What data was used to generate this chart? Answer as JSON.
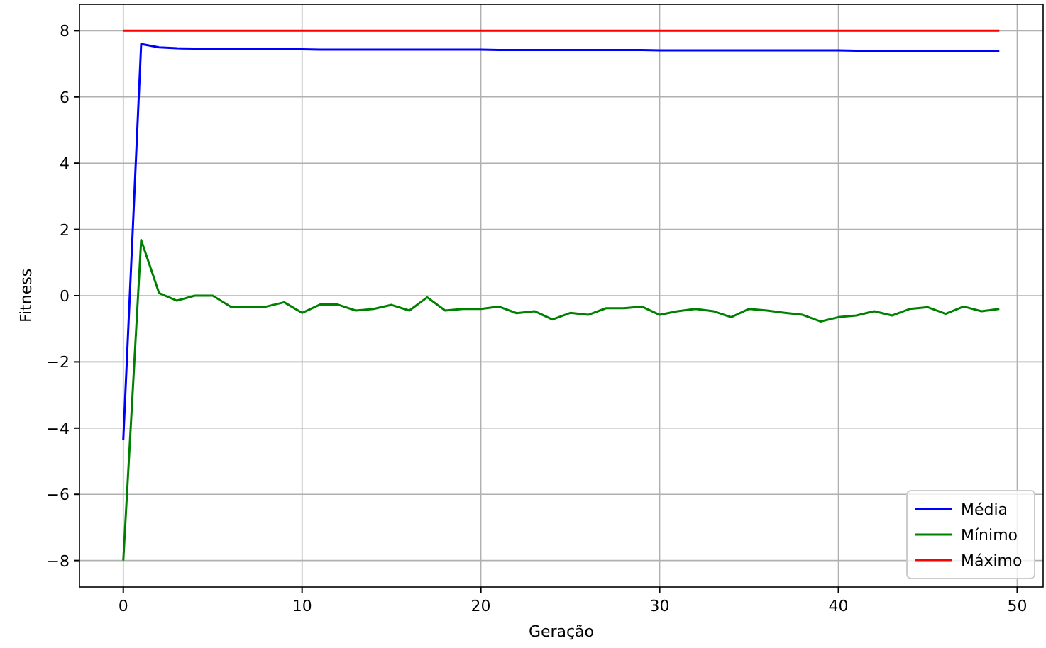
{
  "chart_data": {
    "type": "line",
    "xlabel": "Geração",
    "ylabel": "Fitness",
    "x": [
      0,
      1,
      2,
      3,
      4,
      5,
      6,
      7,
      8,
      9,
      10,
      11,
      12,
      13,
      14,
      15,
      16,
      17,
      18,
      19,
      20,
      21,
      22,
      23,
      24,
      25,
      26,
      27,
      28,
      29,
      30,
      31,
      32,
      33,
      34,
      35,
      36,
      37,
      38,
      39,
      40,
      41,
      42,
      43,
      44,
      45,
      46,
      47,
      48,
      49
    ],
    "series": [
      {
        "name": "Média",
        "color": "#0000ff",
        "values": [
          -4.35,
          7.6,
          7.5,
          7.47,
          7.46,
          7.45,
          7.45,
          7.44,
          7.44,
          7.44,
          7.44,
          7.43,
          7.43,
          7.43,
          7.43,
          7.43,
          7.43,
          7.43,
          7.43,
          7.43,
          7.43,
          7.42,
          7.42,
          7.42,
          7.42,
          7.42,
          7.42,
          7.42,
          7.42,
          7.42,
          7.41,
          7.41,
          7.41,
          7.41,
          7.41,
          7.41,
          7.41,
          7.41,
          7.41,
          7.41,
          7.41,
          7.4,
          7.4,
          7.4,
          7.4,
          7.4,
          7.4,
          7.4,
          7.4,
          7.4
        ]
      },
      {
        "name": "Mínimo",
        "color": "#008000",
        "values": [
          -8,
          1.68,
          0.08,
          -0.15,
          0,
          0,
          -0.33,
          -0.33,
          -0.33,
          -0.2,
          -0.52,
          -0.27,
          -0.27,
          -0.45,
          -0.4,
          -0.28,
          -0.45,
          -0.05,
          -0.45,
          -0.4,
          -0.4,
          -0.33,
          -0.53,
          -0.47,
          -0.72,
          -0.52,
          -0.58,
          -0.38,
          -0.38,
          -0.33,
          -0.58,
          -0.47,
          -0.4,
          -0.47,
          -0.65,
          -0.4,
          -0.45,
          -0.52,
          -0.58,
          -0.78,
          -0.65,
          -0.6,
          -0.47,
          -0.6,
          -0.4,
          -0.35,
          -0.55,
          -0.33,
          -0.47,
          -0.4
        ]
      },
      {
        "name": "Máximo",
        "color": "#ff0000",
        "values": [
          8,
          8,
          8,
          8,
          8,
          8,
          8,
          8,
          8,
          8,
          8,
          8,
          8,
          8,
          8,
          8,
          8,
          8,
          8,
          8,
          8,
          8,
          8,
          8,
          8,
          8,
          8,
          8,
          8,
          8,
          8,
          8,
          8,
          8,
          8,
          8,
          8,
          8,
          8,
          8,
          8,
          8,
          8,
          8,
          8,
          8,
          8,
          8,
          8,
          8
        ]
      }
    ],
    "xlim": [
      -2.45,
      51.45
    ],
    "xticks": [
      0,
      10,
      20,
      30,
      40,
      50
    ],
    "ylim": [
      -8.8,
      8.8
    ],
    "yticks": [
      -8,
      -6,
      -4,
      -2,
      0,
      2,
      4,
      6,
      8
    ],
    "grid": true,
    "legend": "bottom right"
  }
}
